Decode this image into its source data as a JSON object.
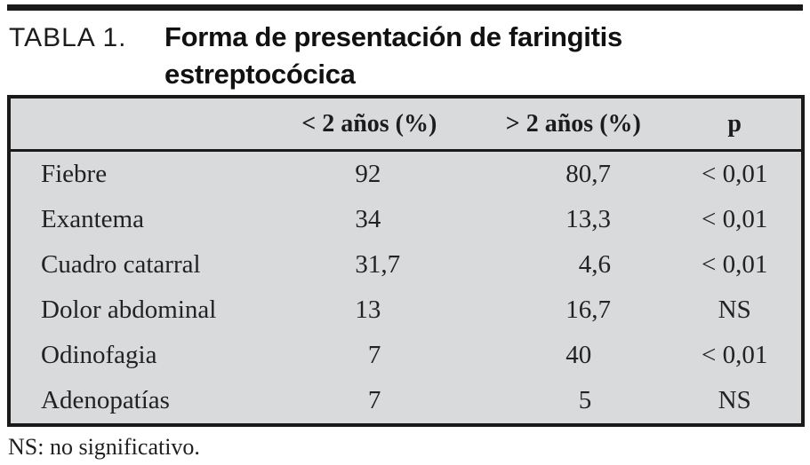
{
  "caption": {
    "label": "TABLA 1.",
    "title_line1": "Forma de presentación de faringitis",
    "title_line2": "estreptocócica"
  },
  "table": {
    "headers": {
      "col1": "",
      "lt2": "< 2 años (%)",
      "gt2": "> 2 años (%)",
      "p": "p"
    },
    "rows": [
      {
        "label": "Fiebre",
        "lt2": {
          "int": "92",
          "dec": ""
        },
        "gt2": {
          "int": "80",
          "dec": ",7"
        },
        "p": "< 0,01"
      },
      {
        "label": "Exantema",
        "lt2": {
          "int": "34",
          "dec": ""
        },
        "gt2": {
          "int": "13",
          "dec": ",3"
        },
        "p": "< 0,01"
      },
      {
        "label": "Cuadro catarral",
        "lt2": {
          "int": "31",
          "dec": ",7"
        },
        "gt2": {
          "int": "4",
          "dec": ",6"
        },
        "p": "< 0,01"
      },
      {
        "label": "Dolor abdominal",
        "lt2": {
          "int": "13",
          "dec": ""
        },
        "gt2": {
          "int": "16",
          "dec": ",7"
        },
        "p": "NS"
      },
      {
        "label": "Odinofagia",
        "lt2": {
          "int": "7",
          "dec": ""
        },
        "gt2": {
          "int": "40",
          "dec": ""
        },
        "p": "< 0,01"
      },
      {
        "label": "Adenopatías",
        "lt2": {
          "int": "7",
          "dec": ""
        },
        "gt2": {
          "int": "5",
          "dec": ""
        },
        "p": "NS"
      }
    ]
  },
  "footnote": "NS: no significativo.",
  "colors": {
    "table_fill": "#d9dadc",
    "rule_black": "#1a1a1a",
    "text": "#1f1f1f"
  }
}
